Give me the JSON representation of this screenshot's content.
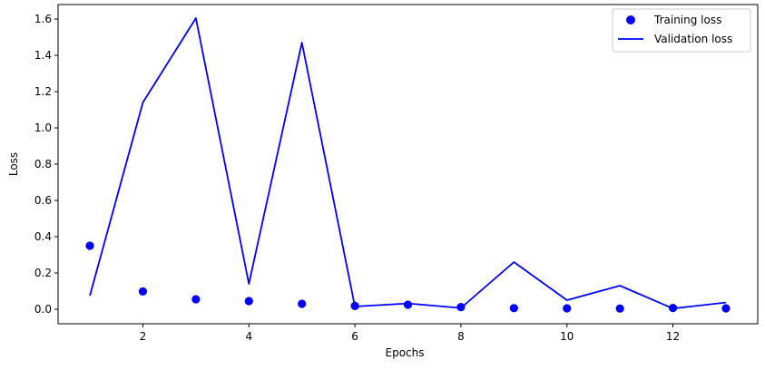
{
  "chart_data": {
    "type": "line",
    "title": "",
    "xlabel": "Epochs",
    "ylabel": "Loss",
    "xlim": [
      0.4,
      13.6
    ],
    "ylim": [
      -0.08,
      1.68
    ],
    "xticks": [
      2,
      4,
      6,
      8,
      10,
      12
    ],
    "yticks": [
      0.0,
      0.2,
      0.4,
      0.6,
      0.8,
      1.0,
      1.2,
      1.4,
      1.6
    ],
    "grid": false,
    "legend_position": "top-right",
    "series": [
      {
        "name": "Training loss",
        "style": "scatter",
        "color": "#0000ff",
        "x": [
          1,
          2,
          3,
          4,
          5,
          6,
          7,
          8,
          9,
          10,
          11,
          12,
          13
        ],
        "y": [
          0.35,
          0.098,
          0.055,
          0.045,
          0.03,
          0.018,
          0.025,
          0.012,
          0.006,
          0.005,
          0.004,
          0.007,
          0.005
        ]
      },
      {
        "name": "Validation loss",
        "style": "line",
        "color": "#0000ff",
        "x": [
          1,
          2,
          3,
          4,
          5,
          6,
          7,
          8,
          9,
          10,
          11,
          12,
          13
        ],
        "y": [
          0.075,
          1.14,
          1.605,
          0.14,
          1.47,
          0.015,
          0.032,
          0.007,
          0.26,
          0.05,
          0.13,
          0.004,
          0.037
        ]
      }
    ]
  }
}
